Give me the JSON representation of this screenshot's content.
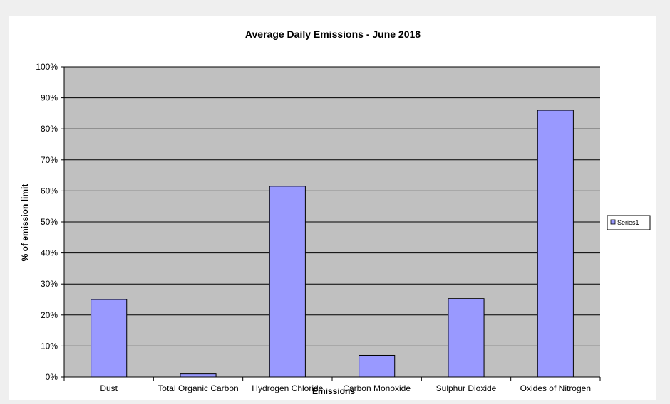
{
  "chart_data": {
    "type": "bar",
    "title": "Average Daily Emissions - June 2018",
    "xlabel": "Emissions",
    "ylabel": "% of emission limit",
    "categories": [
      "Dust",
      "Total Organic Carbon",
      "Hydrogen Chloride",
      "Carbon Monoxide",
      "Sulphur Dioxide",
      "Oxides of Nitrogen"
    ],
    "series": [
      {
        "name": "Series1",
        "values": [
          25,
          1,
          61.5,
          7,
          25.3,
          86
        ]
      }
    ],
    "ylim": [
      0,
      100
    ],
    "yticks": [
      0,
      10,
      20,
      30,
      40,
      50,
      60,
      70,
      80,
      90,
      100
    ],
    "ytick_labels": [
      "0%",
      "10%",
      "20%",
      "30%",
      "40%",
      "50%",
      "60%",
      "70%",
      "80%",
      "90%",
      "100%"
    ],
    "grid": true,
    "legend_position": "right",
    "colors": {
      "bar": "#9999ff",
      "plot_background": "#c0c0c0",
      "gridline": "#000000"
    }
  }
}
